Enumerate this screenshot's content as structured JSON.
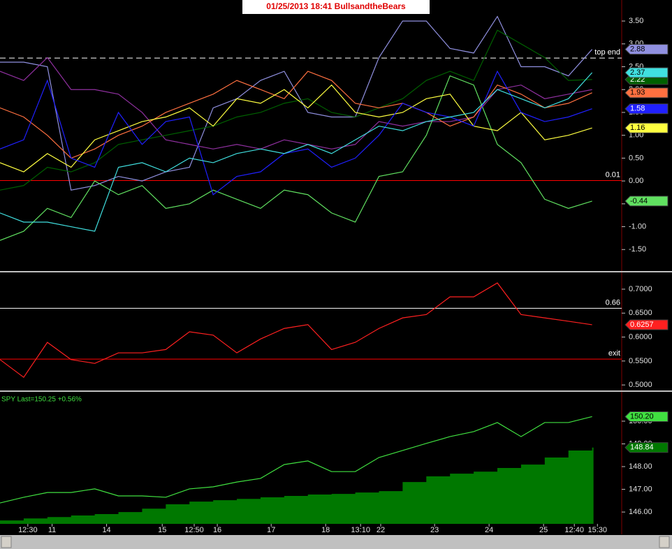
{
  "chart_data": [
    {
      "type": "line",
      "title": "01/25/2013  18:41  BullsandtheBears",
      "x": [
        0,
        4,
        8,
        12,
        16,
        20,
        24,
        28,
        32,
        36,
        40,
        44,
        48,
        52,
        56,
        60,
        64,
        68,
        72,
        76,
        80,
        84,
        88,
        92,
        96,
        100
      ],
      "xlim": [
        0,
        105
      ],
      "ylim": [
        -1.97,
        3.96
      ],
      "yticks": [
        {
          "value": 3.5,
          "label": "3.50"
        },
        {
          "value": 3.0,
          "label": "3.00"
        },
        {
          "value": 2.5,
          "label": "2.50"
        },
        {
          "value": 2.0,
          "label": "2.00"
        },
        {
          "value": 1.5,
          "label": "1.50"
        },
        {
          "value": 1.0,
          "label": "1.00"
        },
        {
          "value": 0.5,
          "label": "0.50"
        },
        {
          "value": 0.0,
          "label": "0.00"
        },
        {
          "value": -0.5,
          "label": "-0.50"
        },
        {
          "value": -1.0,
          "label": "-1.00"
        },
        {
          "value": -1.5,
          "label": "-1.50"
        }
      ],
      "hlines": [
        {
          "value": 2.69,
          "label": "top end",
          "color": "#ffffff",
          "dashed": true
        },
        {
          "value": 0.01,
          "label": "0.01",
          "color": "#ff0000",
          "dashed": false
        }
      ],
      "series": [
        {
          "color": "#9090e0",
          "last_label": "2.88",
          "values": [
            2.6,
            2.6,
            2.5,
            -0.2,
            -0.1,
            0.1,
            0.0,
            0.2,
            0.3,
            1.6,
            1.8,
            2.2,
            2.4,
            1.5,
            1.4,
            1.4,
            2.7,
            3.5,
            3.5,
            2.9,
            2.8,
            3.6,
            2.5,
            2.5,
            2.3,
            2.88
          ]
        },
        {
          "color": "#9030a0",
          "values": [
            2.4,
            2.2,
            2.7,
            2.0,
            2.0,
            1.9,
            1.5,
            0.9,
            0.8,
            0.7,
            0.8,
            0.7,
            0.9,
            0.8,
            0.7,
            0.8,
            1.3,
            1.2,
            1.3,
            1.3,
            1.4,
            2.0,
            2.1,
            1.8,
            1.9,
            2.0
          ]
        },
        {
          "color": "#60e060",
          "last_label": "-0.44",
          "values": [
            -1.3,
            -1.1,
            -0.6,
            -0.8,
            0.0,
            -0.3,
            -0.1,
            -0.6,
            -0.5,
            -0.2,
            -0.4,
            -0.6,
            -0.2,
            -0.3,
            -0.7,
            -0.9,
            0.1,
            0.2,
            1.0,
            2.3,
            2.1,
            0.8,
            0.4,
            -0.4,
            -0.6,
            -0.44
          ]
        },
        {
          "color": "#006000",
          "last_label": "2.22",
          "values": [
            -0.2,
            -0.1,
            0.3,
            0.2,
            0.4,
            0.8,
            0.9,
            1.0,
            1.1,
            1.2,
            1.4,
            1.5,
            1.7,
            1.8,
            1.5,
            1.4,
            1.6,
            1.8,
            2.2,
            2.4,
            2.2,
            3.3,
            3.0,
            2.7,
            2.2,
            2.22
          ]
        },
        {
          "color": "#ff7040",
          "last_label": "1.93",
          "values": [
            1.6,
            1.4,
            1.0,
            0.5,
            0.7,
            1.0,
            1.2,
            1.5,
            1.7,
            1.9,
            2.2,
            2.0,
            1.8,
            2.4,
            2.2,
            1.7,
            1.6,
            1.7,
            1.5,
            1.2,
            1.4,
            2.1,
            1.9,
            1.6,
            1.7,
            1.93
          ]
        },
        {
          "color": "#ffff40",
          "last_label": "1.16",
          "values": [
            0.4,
            0.2,
            0.6,
            0.3,
            0.9,
            1.1,
            1.3,
            1.4,
            1.6,
            1.2,
            1.8,
            1.7,
            2.0,
            1.6,
            2.1,
            1.5,
            1.4,
            1.5,
            1.8,
            1.9,
            1.2,
            1.1,
            1.5,
            0.9,
            1.0,
            1.16
          ]
        },
        {
          "color": "#2020ff",
          "last_label": "1.58",
          "values": [
            0.7,
            0.9,
            2.2,
            0.5,
            0.3,
            1.5,
            0.8,
            1.3,
            1.4,
            -0.3,
            0.1,
            0.2,
            0.6,
            0.7,
            0.3,
            0.5,
            1.0,
            1.7,
            1.5,
            1.4,
            1.2,
            2.4,
            1.5,
            1.3,
            1.4,
            1.58
          ]
        },
        {
          "color": "#40e0e0",
          "last_label": "2.37",
          "values": [
            -0.7,
            -0.9,
            -0.9,
            -1.0,
            -1.1,
            0.3,
            0.4,
            0.2,
            0.5,
            0.4,
            0.6,
            0.7,
            0.6,
            0.8,
            0.6,
            0.9,
            1.2,
            1.1,
            1.3,
            1.4,
            1.5,
            2.0,
            1.8,
            1.6,
            1.8,
            2.37
          ]
        }
      ]
    },
    {
      "type": "line",
      "x": [
        0,
        4,
        8,
        12,
        16,
        20,
        24,
        28,
        32,
        36,
        40,
        44,
        48,
        52,
        56,
        60,
        64,
        68,
        72,
        76,
        80,
        84,
        88,
        92,
        96,
        100
      ],
      "xlim": [
        0,
        105
      ],
      "ylim": [
        0.49,
        0.735
      ],
      "yticks": [
        {
          "value": 0.7,
          "label": "0.7000"
        },
        {
          "value": 0.65,
          "label": "0.6500"
        },
        {
          "value": 0.6,
          "label": "0.6000"
        },
        {
          "value": 0.55,
          "label": "0.5500"
        },
        {
          "value": 0.5,
          "label": "0.5000"
        }
      ],
      "hlines": [
        {
          "value": 0.66,
          "label": "0.66",
          "color": "#ffffff",
          "dashed": false
        },
        {
          "value": 0.554,
          "label": "exit",
          "color": "#ff0000",
          "dashed": false
        }
      ],
      "series": [
        {
          "color": "#ff2020",
          "last_label": "0.6257",
          "values": [
            0.553,
            0.516,
            0.589,
            0.553,
            0.545,
            0.567,
            0.567,
            0.574,
            0.611,
            0.604,
            0.567,
            0.596,
            0.618,
            0.626,
            0.574,
            0.589,
            0.618,
            0.64,
            0.647,
            0.684,
            0.684,
            0.713,
            0.647,
            0.64,
            0.633,
            0.6257
          ]
        }
      ]
    },
    {
      "type": "line",
      "title": "SPY  Last=150.25  +0.56%",
      "x": [
        0,
        4,
        8,
        12,
        16,
        20,
        24,
        28,
        32,
        36,
        40,
        44,
        48,
        52,
        56,
        60,
        64,
        68,
        72,
        76,
        80,
        84,
        88,
        92,
        96,
        100
      ],
      "xlim": [
        0,
        105
      ],
      "ylim": [
        145.48,
        151.26
      ],
      "yticks": [
        {
          "value": 150,
          "label": "150.00"
        },
        {
          "value": 149,
          "label": "149.00"
        },
        {
          "value": 148,
          "label": "148.00"
        },
        {
          "value": 147,
          "label": "147.00"
        },
        {
          "value": 146,
          "label": "146.00"
        }
      ],
      "xticks": [
        {
          "value": 4.7,
          "label": "12:30"
        },
        {
          "value": 8.8,
          "label": "11"
        },
        {
          "value": 18,
          "label": "14"
        },
        {
          "value": 27.4,
          "label": "15"
        },
        {
          "value": 32.8,
          "label": "12:50"
        },
        {
          "value": 36.7,
          "label": "16"
        },
        {
          "value": 45.8,
          "label": "17"
        },
        {
          "value": 55,
          "label": "18"
        },
        {
          "value": 60.9,
          "label": "13:10"
        },
        {
          "value": 64.3,
          "label": "22"
        },
        {
          "value": 73.4,
          "label": "23"
        },
        {
          "value": 82.6,
          "label": "24"
        },
        {
          "value": 91.8,
          "label": "25"
        },
        {
          "value": 97,
          "label": "12:40"
        },
        {
          "value": 100.9,
          "label": "15:30"
        }
      ],
      "series": [
        {
          "type": "area",
          "color": "#007800",
          "last_label": "148.84",
          "values": [
            145.63,
            145.72,
            145.78,
            145.85,
            145.91,
            146.0,
            146.15,
            146.34,
            146.46,
            146.52,
            146.58,
            146.65,
            146.71,
            146.77,
            146.8,
            146.86,
            146.92,
            147.32,
            147.57,
            147.69,
            147.78,
            147.94,
            148.09,
            148.4,
            148.71,
            148.84
          ]
        },
        {
          "type": "line",
          "color": "#40e040",
          "last_label": "150.20",
          "values": [
            146.4,
            146.65,
            146.86,
            146.86,
            147.02,
            146.71,
            146.71,
            146.65,
            147.02,
            147.11,
            147.32,
            147.48,
            148.09,
            148.25,
            147.78,
            147.78,
            148.4,
            148.71,
            149.02,
            149.32,
            149.54,
            149.94,
            149.32,
            149.94,
            149.94,
            150.2
          ]
        }
      ]
    }
  ]
}
